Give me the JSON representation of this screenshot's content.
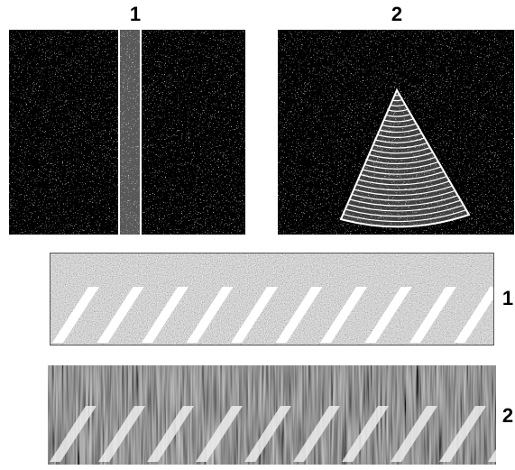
{
  "top_panels": [
    {
      "label": "1"
    },
    {
      "label": "2"
    }
  ],
  "bottom_panels": [
    {
      "label": "1"
    },
    {
      "label": "2"
    }
  ]
}
